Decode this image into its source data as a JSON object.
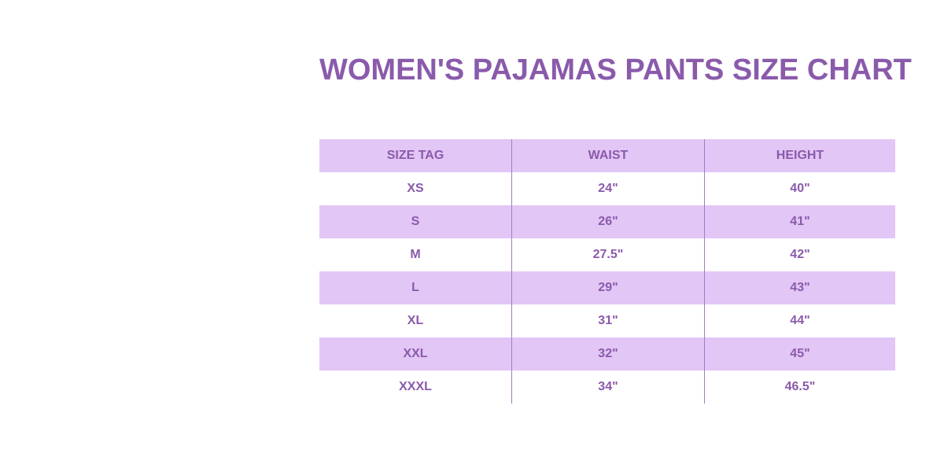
{
  "title": "WOMEN'S PAJAMAS PANTS SIZE CHART",
  "colors": {
    "accent": "#8a5aab",
    "stripe": "#e2c6f5"
  },
  "table": {
    "headers": [
      "SIZE TAG",
      "WAIST",
      "HEIGHT"
    ],
    "rows": [
      [
        "XS",
        "24\"",
        "40\""
      ],
      [
        "S",
        "26\"",
        "41\""
      ],
      [
        "M",
        "27.5\"",
        "42\""
      ],
      [
        "L",
        "29\"",
        "43\""
      ],
      [
        "XL",
        "31\"",
        "44\""
      ],
      [
        "XXL",
        "32\"",
        "45\""
      ],
      [
        "XXXL",
        "34\"",
        "46.5\""
      ]
    ]
  }
}
